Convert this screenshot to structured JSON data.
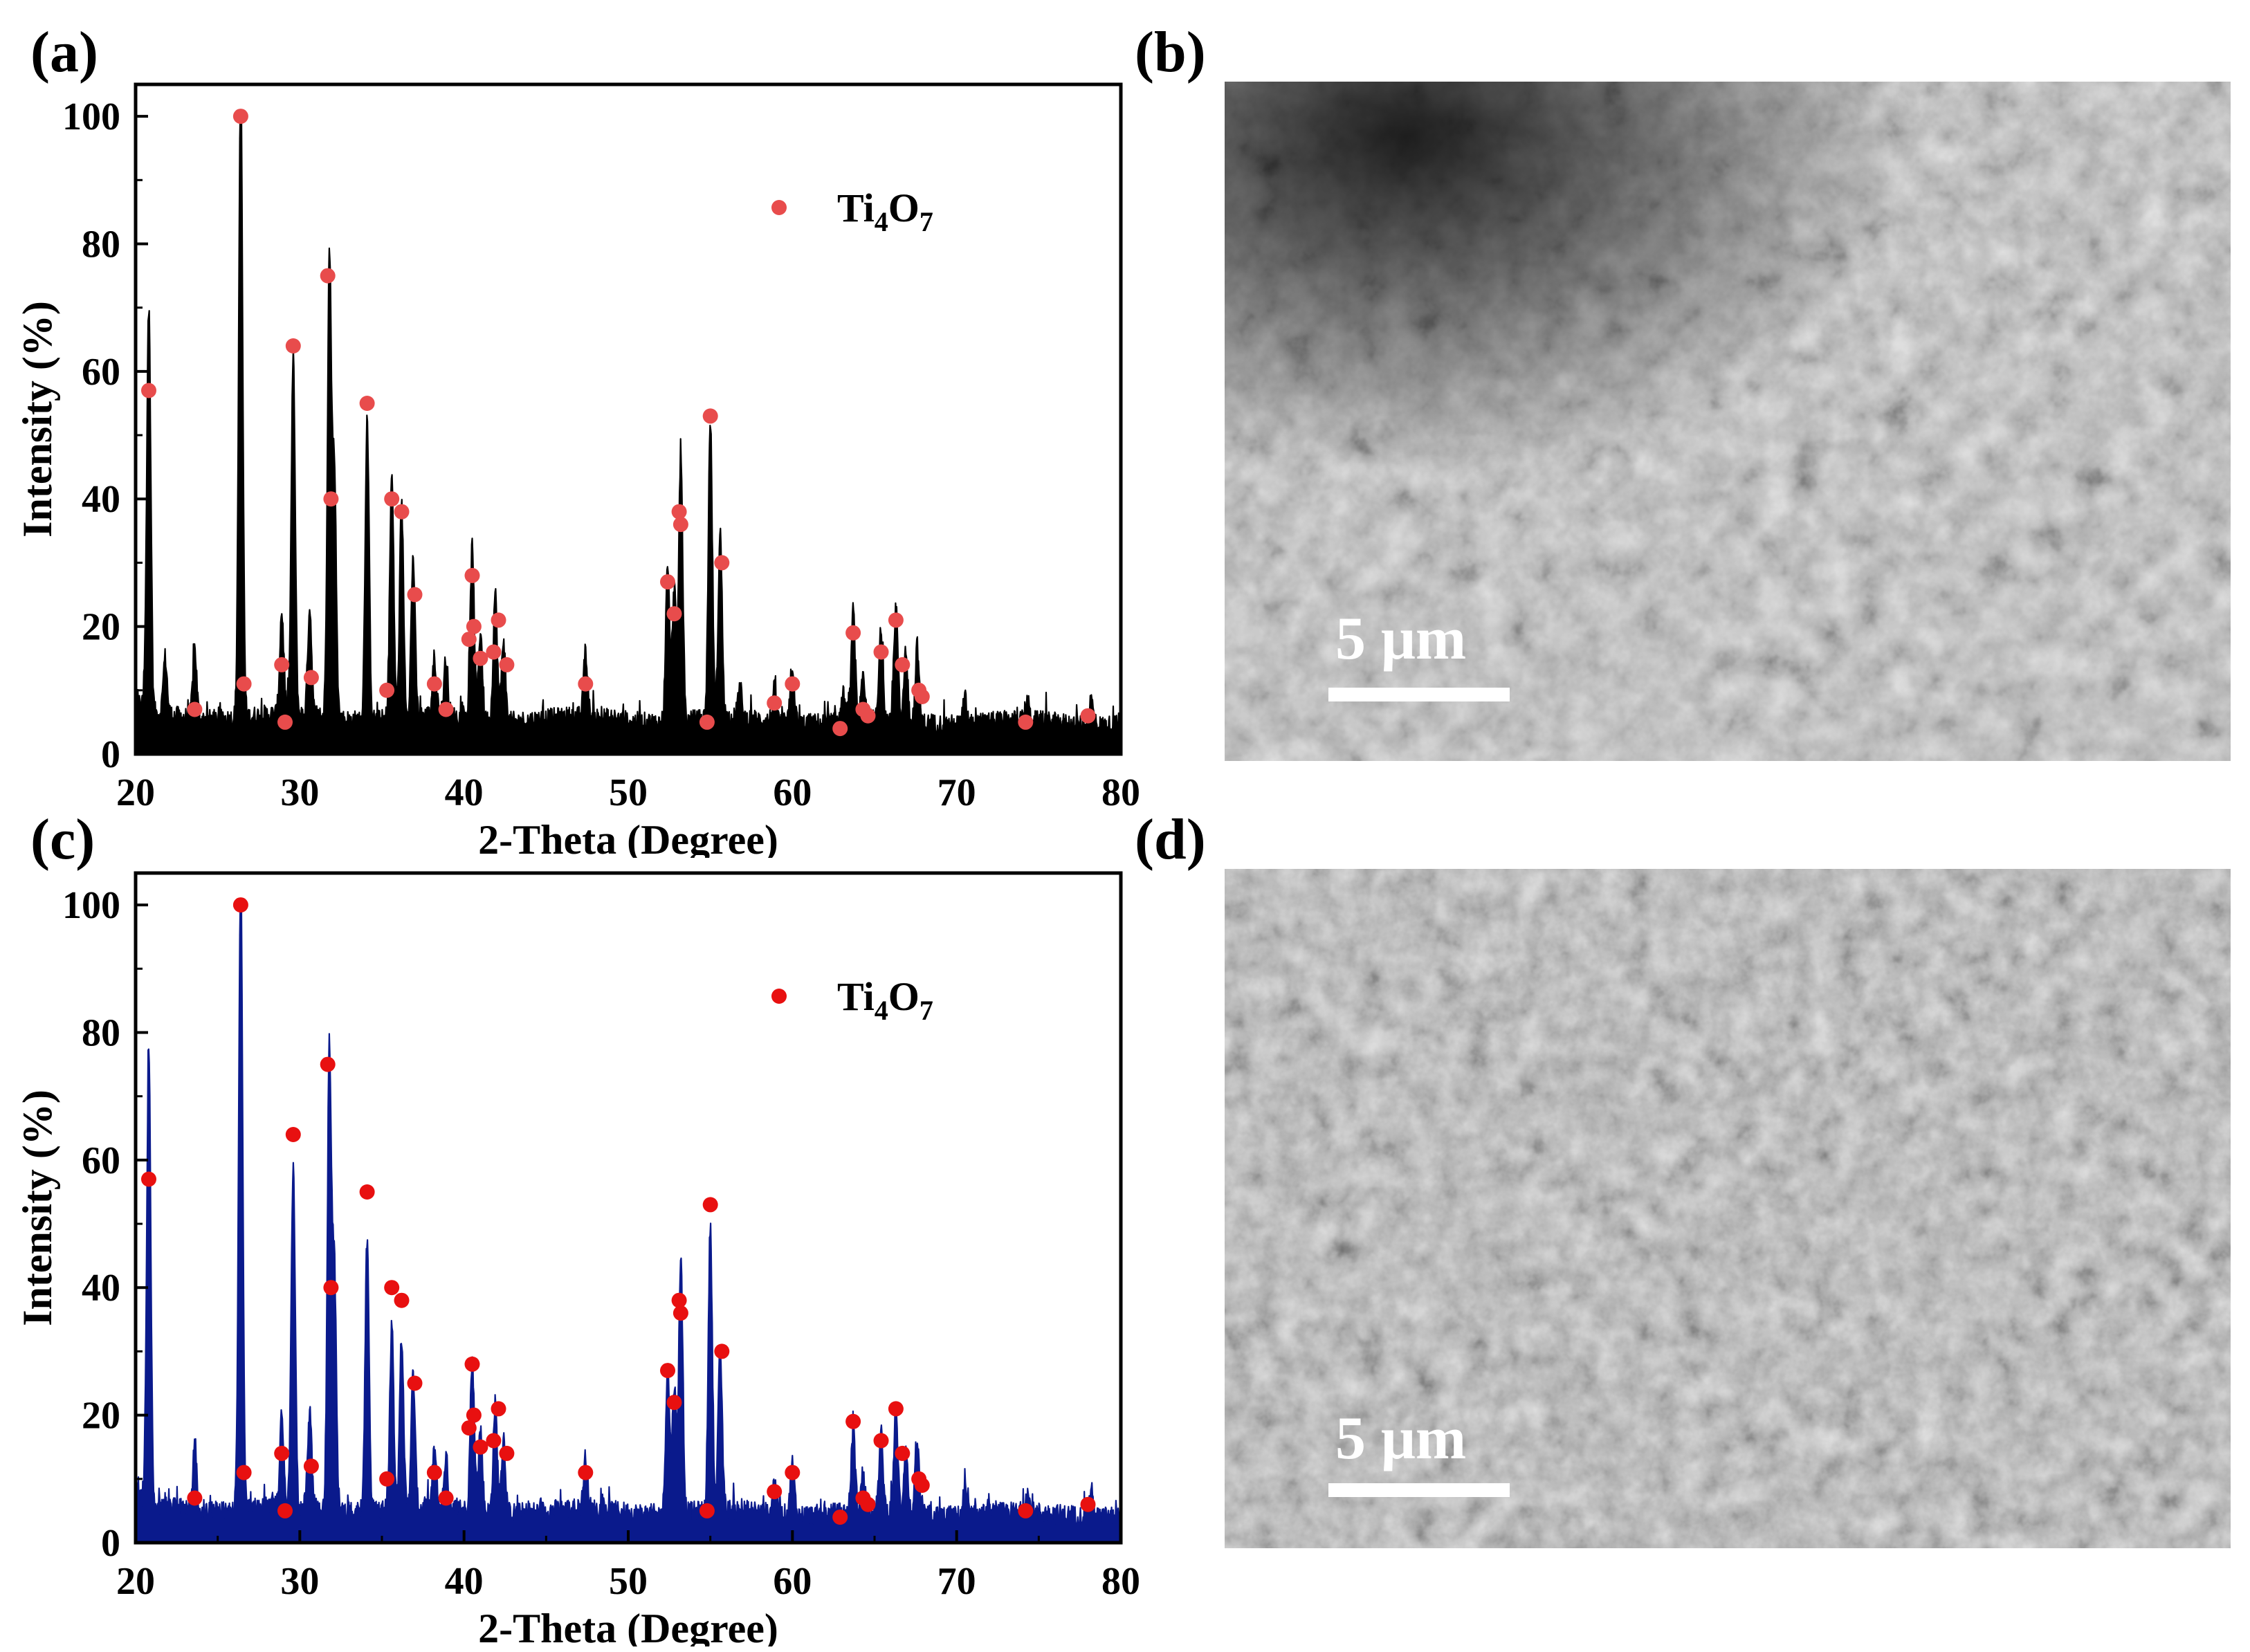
{
  "panels": {
    "a": "(a)",
    "b": "(b)",
    "c": "(c)",
    "d": "(d)"
  },
  "scale_bar": {
    "b": "5 μm",
    "d": "5 μm"
  },
  "chart_data": [
    {
      "id": "a",
      "type": "line",
      "xlabel": "2-Theta (Degree)",
      "ylabel": "Intensity (%)",
      "xlim": [
        20,
        80
      ],
      "ylim": [
        0,
        105
      ],
      "xticks": [
        20,
        30,
        40,
        50,
        60,
        70,
        80
      ],
      "yticks": [
        0,
        20,
        40,
        60,
        80,
        100
      ],
      "line_color": "#000000",
      "marker_color": "#e84c4c",
      "legend": {
        "label_base": "Ti",
        "sub1": "4",
        "mid": "O",
        "sub2": "7",
        "placement": "top-right"
      },
      "baseline": 6,
      "peaks": [
        [
          20.8,
          63
        ],
        [
          21.8,
          9
        ],
        [
          23.6,
          11
        ],
        [
          26.4,
          100
        ],
        [
          28.9,
          16
        ],
        [
          29.6,
          56
        ],
        [
          30.6,
          17
        ],
        [
          31.8,
          72
        ],
        [
          32.1,
          38
        ],
        [
          34.1,
          47
        ],
        [
          35.6,
          38
        ],
        [
          36.2,
          33
        ],
        [
          36.9,
          25
        ],
        [
          38.2,
          9
        ],
        [
          38.9,
          9
        ],
        [
          40.5,
          27
        ],
        [
          41.0,
          14
        ],
        [
          41.9,
          20
        ],
        [
          42.4,
          13
        ],
        [
          47.4,
          10
        ],
        [
          52.4,
          24
        ],
        [
          52.8,
          21
        ],
        [
          53.2,
          42
        ],
        [
          55.0,
          47
        ],
        [
          55.6,
          29
        ],
        [
          56.8,
          5
        ],
        [
          58.9,
          5
        ],
        [
          60.0,
          9
        ],
        [
          63.1,
          4
        ],
        [
          63.7,
          17
        ],
        [
          64.3,
          6
        ],
        [
          65.4,
          14
        ],
        [
          66.3,
          18
        ],
        [
          66.9,
          11
        ],
        [
          67.6,
          12
        ],
        [
          70.5,
          4
        ],
        [
          74.3,
          3
        ],
        [
          78.2,
          4
        ]
      ],
      "markers": [
        [
          20.8,
          57
        ],
        [
          23.6,
          7
        ],
        [
          26.4,
          100
        ],
        [
          26.6,
          11
        ],
        [
          28.9,
          14
        ],
        [
          29.1,
          5
        ],
        [
          29.6,
          64
        ],
        [
          30.7,
          12
        ],
        [
          31.7,
          75
        ],
        [
          31.9,
          40
        ],
        [
          34.1,
          55
        ],
        [
          35.3,
          10
        ],
        [
          35.6,
          40
        ],
        [
          36.2,
          38
        ],
        [
          37.0,
          25
        ],
        [
          38.2,
          11
        ],
        [
          38.9,
          7
        ],
        [
          40.5,
          28
        ],
        [
          40.3,
          18
        ],
        [
          40.6,
          20
        ],
        [
          41.0,
          15
        ],
        [
          41.8,
          16
        ],
        [
          42.1,
          21
        ],
        [
          42.6,
          14
        ],
        [
          47.4,
          11
        ],
        [
          52.4,
          27
        ],
        [
          52.8,
          22
        ],
        [
          53.1,
          38
        ],
        [
          53.2,
          36
        ],
        [
          54.8,
          5
        ],
        [
          55.0,
          53
        ],
        [
          55.7,
          30
        ],
        [
          58.9,
          8
        ],
        [
          60.0,
          11
        ],
        [
          62.9,
          4
        ],
        [
          63.7,
          19
        ],
        [
          64.3,
          7
        ],
        [
          64.6,
          6
        ],
        [
          65.4,
          16
        ],
        [
          66.3,
          21
        ],
        [
          66.7,
          14
        ],
        [
          67.7,
          10
        ],
        [
          67.9,
          9
        ],
        [
          74.2,
          5
        ],
        [
          78.0,
          6
        ]
      ]
    },
    {
      "id": "c",
      "type": "line",
      "xlabel": "2-Theta (Degree)",
      "ylabel": "Intensity (%)",
      "xlim": [
        20,
        80
      ],
      "ylim": [
        0,
        105
      ],
      "xticks": [
        20,
        30,
        40,
        50,
        60,
        70,
        80
      ],
      "yticks": [
        0,
        20,
        40,
        60,
        80,
        100
      ],
      "line_color": "#0a1a8c",
      "marker_color": "#e81010",
      "legend": {
        "label_base": "Ti",
        "sub1": "4",
        "mid": "O",
        "sub2": "7",
        "placement": "top-right"
      },
      "baseline": 5.5,
      "peaks": [
        [
          20.8,
          70
        ],
        [
          23.6,
          10
        ],
        [
          26.4,
          100
        ],
        [
          28.9,
          14
        ],
        [
          29.6,
          54
        ],
        [
          30.6,
          15
        ],
        [
          31.8,
          72
        ],
        [
          32.1,
          38
        ],
        [
          34.1,
          43
        ],
        [
          35.6,
          29
        ],
        [
          36.2,
          27
        ],
        [
          36.9,
          21
        ],
        [
          38.2,
          9
        ],
        [
          38.9,
          8
        ],
        [
          40.5,
          24
        ],
        [
          41.0,
          13
        ],
        [
          41.9,
          17
        ],
        [
          42.4,
          12
        ],
        [
          47.4,
          8
        ],
        [
          52.4,
          23
        ],
        [
          52.8,
          20
        ],
        [
          53.2,
          40
        ],
        [
          55.0,
          45
        ],
        [
          55.6,
          25
        ],
        [
          58.9,
          5
        ],
        [
          60.0,
          8
        ],
        [
          63.7,
          13
        ],
        [
          64.3,
          6
        ],
        [
          65.4,
          12
        ],
        [
          66.3,
          16
        ],
        [
          66.9,
          10
        ],
        [
          67.6,
          11
        ],
        [
          70.5,
          4
        ],
        [
          74.3,
          3
        ],
        [
          78.2,
          4
        ]
      ],
      "markers": [
        [
          20.8,
          57
        ],
        [
          23.6,
          7
        ],
        [
          26.4,
          100
        ],
        [
          26.6,
          11
        ],
        [
          28.9,
          14
        ],
        [
          29.1,
          5
        ],
        [
          29.6,
          64
        ],
        [
          30.7,
          12
        ],
        [
          31.7,
          75
        ],
        [
          31.9,
          40
        ],
        [
          34.1,
          55
        ],
        [
          35.3,
          10
        ],
        [
          35.6,
          40
        ],
        [
          36.2,
          38
        ],
        [
          37.0,
          25
        ],
        [
          38.2,
          11
        ],
        [
          38.9,
          7
        ],
        [
          40.5,
          28
        ],
        [
          40.3,
          18
        ],
        [
          40.6,
          20
        ],
        [
          41.0,
          15
        ],
        [
          41.8,
          16
        ],
        [
          42.1,
          21
        ],
        [
          42.6,
          14
        ],
        [
          47.4,
          11
        ],
        [
          52.4,
          27
        ],
        [
          52.8,
          22
        ],
        [
          53.1,
          38
        ],
        [
          53.2,
          36
        ],
        [
          54.8,
          5
        ],
        [
          55.0,
          53
        ],
        [
          55.7,
          30
        ],
        [
          58.9,
          8
        ],
        [
          60.0,
          11
        ],
        [
          62.9,
          4
        ],
        [
          63.7,
          19
        ],
        [
          64.3,
          7
        ],
        [
          64.6,
          6
        ],
        [
          65.4,
          16
        ],
        [
          66.3,
          21
        ],
        [
          66.7,
          14
        ],
        [
          67.7,
          10
        ],
        [
          67.9,
          9
        ],
        [
          74.2,
          5
        ],
        [
          78.0,
          6
        ]
      ]
    }
  ]
}
